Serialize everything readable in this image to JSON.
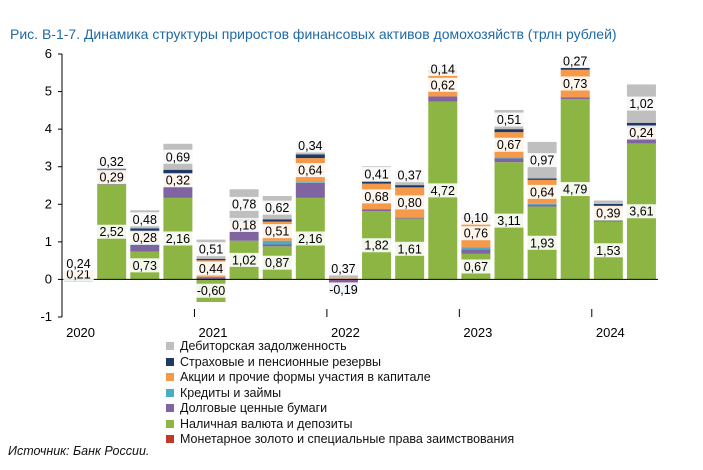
{
  "title": "Рис. В-1-7. Динамика структуры приростов финансовых активов домохозяйств (трлн рублей)",
  "source": "Источник: Банк России.",
  "colors": {
    "gold": "#c0392b",
    "cash": "#8db543",
    "debt": "#8064a2",
    "loans": "#4bacc6",
    "shares": "#f49a4a",
    "pension": "#1f3864",
    "receivables": "#bfbfbf"
  },
  "chart_data": {
    "type": "bar",
    "stacked": true,
    "title": "Рис. В-1-7. Динамика структуры приростов финансовых активов домохозяйств (трлн рублей)",
    "ylim": [
      -1,
      6
    ],
    "yticks": [
      -1,
      0,
      1,
      2,
      3,
      4,
      5,
      6
    ],
    "grid": false,
    "legend_position": "bottom",
    "year_labels": [
      {
        "label": "2020",
        "index": 0
      },
      {
        "label": "2021",
        "index": 4
      },
      {
        "label": "2022",
        "index": 8
      },
      {
        "label": "2023",
        "index": 12
      },
      {
        "label": "2024",
        "index": 16
      }
    ],
    "series": [
      {
        "name": "Монетарное золото и специальные права заимствования",
        "key": "gold",
        "values": [
          0.01,
          0.01,
          0.01,
          0.01,
          0.01,
          0.01,
          0.01,
          0.01,
          0.0,
          0.0,
          0.01,
          0.01,
          0.01,
          0.01,
          0.01,
          0.01,
          0.01,
          0.01
        ]
      },
      {
        "name": "Наличная валюта и депозиты",
        "key": "cash",
        "values": [
          -0.05,
          2.52,
          0.73,
          2.16,
          -0.6,
          1.02,
          0.87,
          2.16,
          0.0,
          1.82,
          1.61,
          4.72,
          0.67,
          3.11,
          1.93,
          4.79,
          1.53,
          3.61
        ]
      },
      {
        "name": "Долговые ценные бумаги",
        "key": "debt",
        "values": [
          0.02,
          0.05,
          0.18,
          0.3,
          0.04,
          0.3,
          0.05,
          0.4,
          -0.19,
          0.05,
          0.02,
          0.14,
          0.12,
          0.1,
          0.05,
          0.05,
          0.02,
          0.15
        ]
      },
      {
        "name": "Кредиты и займы",
        "key": "loans",
        "values": [
          0.01,
          0.0,
          0.05,
          0.01,
          0.02,
          0.03,
          0.1,
          0.02,
          -0.14,
          0.0,
          0.01,
          0.0,
          0.05,
          0.03,
          0.02,
          0.0,
          0.01,
          0.02
        ]
      },
      {
        "name": "Акции и прочие формы участия в капитале",
        "key": "shares",
        "values": [
          0.21,
          0.29,
          0.28,
          0.32,
          0.44,
          0.18,
          0.51,
          0.64,
          0.03,
          0.68,
          0.8,
          0.62,
          0.76,
          0.67,
          0.64,
          0.73,
          0.39,
          0.24
        ]
      },
      {
        "name": "Страховые и пенсионные резервы",
        "key": "pension",
        "values": [
          0.04,
          0.06,
          0.11,
          0.12,
          0.04,
          0.08,
          0.06,
          0.1,
          -0.04,
          0.05,
          0.06,
          0.08,
          0.04,
          0.08,
          0.04,
          0.07,
          0.05,
          0.14
        ]
      },
      {
        "name": "Дебиторская задолженность",
        "key": "receivables",
        "values": [
          0.24,
          0.32,
          0.48,
          0.69,
          0.51,
          0.78,
          0.62,
          0.34,
          0.37,
          0.41,
          0.37,
          0.14,
          0.1,
          0.51,
          0.97,
          0.27,
          0.09,
          1.02
        ]
      }
    ],
    "data_labels": {
      "cash": [
        "",
        "2,52",
        "0,73",
        "2,16",
        "-0,60",
        "1,02",
        "0,87",
        "2,16",
        "",
        "1,82",
        "1,61",
        "4,72",
        "0,67",
        "3,11",
        "1,93",
        "4,79",
        "1,53",
        "3,61"
      ],
      "debt": [
        "",
        "",
        "",
        "",
        "",
        "",
        "",
        "",
        "-0,19",
        "",
        "",
        "",
        "",
        "",
        "",
        "",
        "",
        ""
      ],
      "shares": [
        "0,21",
        "0,29",
        "0,28",
        "0,32",
        "0,44",
        "0,18",
        "0,51",
        "0,64",
        "",
        "0,68",
        "0,80",
        "0,62",
        "0,76",
        "0,67",
        "0,64",
        "0,73",
        "0,39",
        "0,24"
      ],
      "receivables": [
        "0,24",
        "0,32",
        "0,48",
        "0,69",
        "0,51",
        "0,78",
        "0,62",
        "0,34",
        "0,37",
        "0,41",
        "0,37",
        "0,14",
        "0,10",
        "0,51",
        "0,97",
        "0,27",
        "",
        "1,02"
      ]
    }
  }
}
